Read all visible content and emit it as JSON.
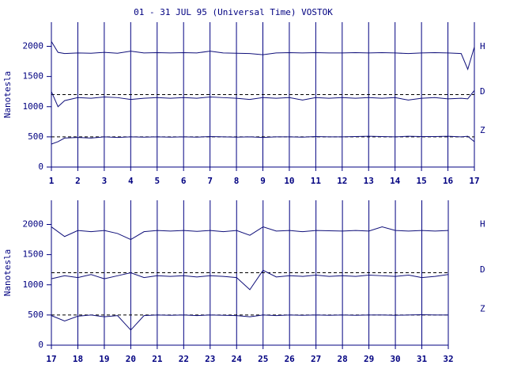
{
  "chart_data": [
    {
      "type": "line",
      "title": "01 - 31 JUL 95 (Universal Time) VOSTOK",
      "ylabel": "Nanotesla",
      "x": [
        1,
        1.25,
        1.5,
        2,
        2.5,
        3,
        3.5,
        4,
        4.5,
        5,
        5.5,
        6,
        6.5,
        7,
        7.5,
        8,
        8.5,
        9,
        9.5,
        10,
        10.5,
        11,
        11.5,
        12,
        12.5,
        13,
        13.5,
        14,
        14.5,
        15,
        15.5,
        16,
        16.5,
        16.75,
        17
      ],
      "series": [
        {
          "name": "H",
          "color": "#10107a",
          "values": [
            2080,
            1900,
            1880,
            1890,
            1885,
            1900,
            1885,
            1920,
            1890,
            1895,
            1890,
            1895,
            1890,
            1920,
            1890,
            1885,
            1880,
            1860,
            1890,
            1895,
            1890,
            1895,
            1890,
            1890,
            1895,
            1890,
            1895,
            1890,
            1880,
            1890,
            1895,
            1890,
            1880,
            1620,
            1990
          ]
        },
        {
          "name": "D",
          "color": "#10107a",
          "values": [
            1250,
            1000,
            1100,
            1150,
            1140,
            1160,
            1150,
            1120,
            1140,
            1150,
            1140,
            1150,
            1140,
            1160,
            1150,
            1140,
            1120,
            1150,
            1140,
            1150,
            1110,
            1150,
            1140,
            1150,
            1140,
            1150,
            1140,
            1150,
            1110,
            1140,
            1150,
            1130,
            1140,
            1130,
            1270
          ]
        },
        {
          "name": "Z",
          "color": "#10107a",
          "values": [
            380,
            420,
            480,
            490,
            480,
            500,
            490,
            500,
            495,
            500,
            495,
            500,
            495,
            505,
            500,
            495,
            500,
            490,
            500,
            500,
            495,
            505,
            500,
            500,
            505,
            510,
            505,
            500,
            510,
            505,
            505,
            510,
            500,
            510,
            420
          ]
        }
      ],
      "reference_lines": [
        1200,
        500
      ],
      "xlim": [
        1,
        17
      ],
      "xticks": [
        1,
        2,
        3,
        4,
        5,
        6,
        7,
        8,
        9,
        10,
        11,
        12,
        13,
        14,
        15,
        16,
        17
      ],
      "ylim": [
        0,
        2400
      ],
      "yticks": [
        0,
        500,
        1000,
        1500,
        2000
      ],
      "grid": true
    },
    {
      "type": "line",
      "ylabel": "Nanotesla",
      "x": [
        17,
        17.5,
        18,
        18.5,
        19,
        19.5,
        20,
        20.5,
        21,
        21.5,
        22,
        22.5,
        23,
        23.5,
        24,
        24.5,
        25,
        25.5,
        26,
        26.5,
        27,
        27.5,
        28,
        28.5,
        29,
        29.5,
        30,
        30.5,
        31,
        31.5,
        32
      ],
      "series": [
        {
          "name": "H",
          "color": "#10107a",
          "values": [
            1960,
            1800,
            1900,
            1880,
            1900,
            1850,
            1750,
            1880,
            1900,
            1890,
            1900,
            1885,
            1900,
            1880,
            1900,
            1820,
            1960,
            1890,
            1900,
            1880,
            1900,
            1895,
            1890,
            1900,
            1890,
            1960,
            1900,
            1890,
            1900,
            1890,
            1900
          ]
        },
        {
          "name": "D",
          "color": "#10107a",
          "values": [
            1100,
            1150,
            1120,
            1170,
            1100,
            1150,
            1200,
            1120,
            1150,
            1140,
            1150,
            1130,
            1150,
            1140,
            1120,
            920,
            1240,
            1130,
            1150,
            1140,
            1160,
            1140,
            1150,
            1140,
            1160,
            1150,
            1140,
            1160,
            1120,
            1140,
            1170
          ]
        },
        {
          "name": "Z",
          "color": "#10107a",
          "values": [
            490,
            400,
            480,
            500,
            470,
            490,
            250,
            490,
            500,
            495,
            500,
            490,
            500,
            495,
            490,
            470,
            500,
            490,
            500,
            495,
            500,
            495,
            500,
            495,
            500,
            500,
            495,
            500,
            505,
            500,
            500
          ]
        }
      ],
      "reference_lines": [
        1200,
        500
      ],
      "xlim": [
        17,
        32
      ],
      "xticks": [
        17,
        18,
        19,
        20,
        21,
        22,
        23,
        24,
        25,
        26,
        27,
        28,
        29,
        30,
        31,
        32
      ],
      "ylim": [
        0,
        2400
      ],
      "yticks": [
        0,
        500,
        1000,
        1500,
        2000
      ],
      "grid": true
    }
  ]
}
